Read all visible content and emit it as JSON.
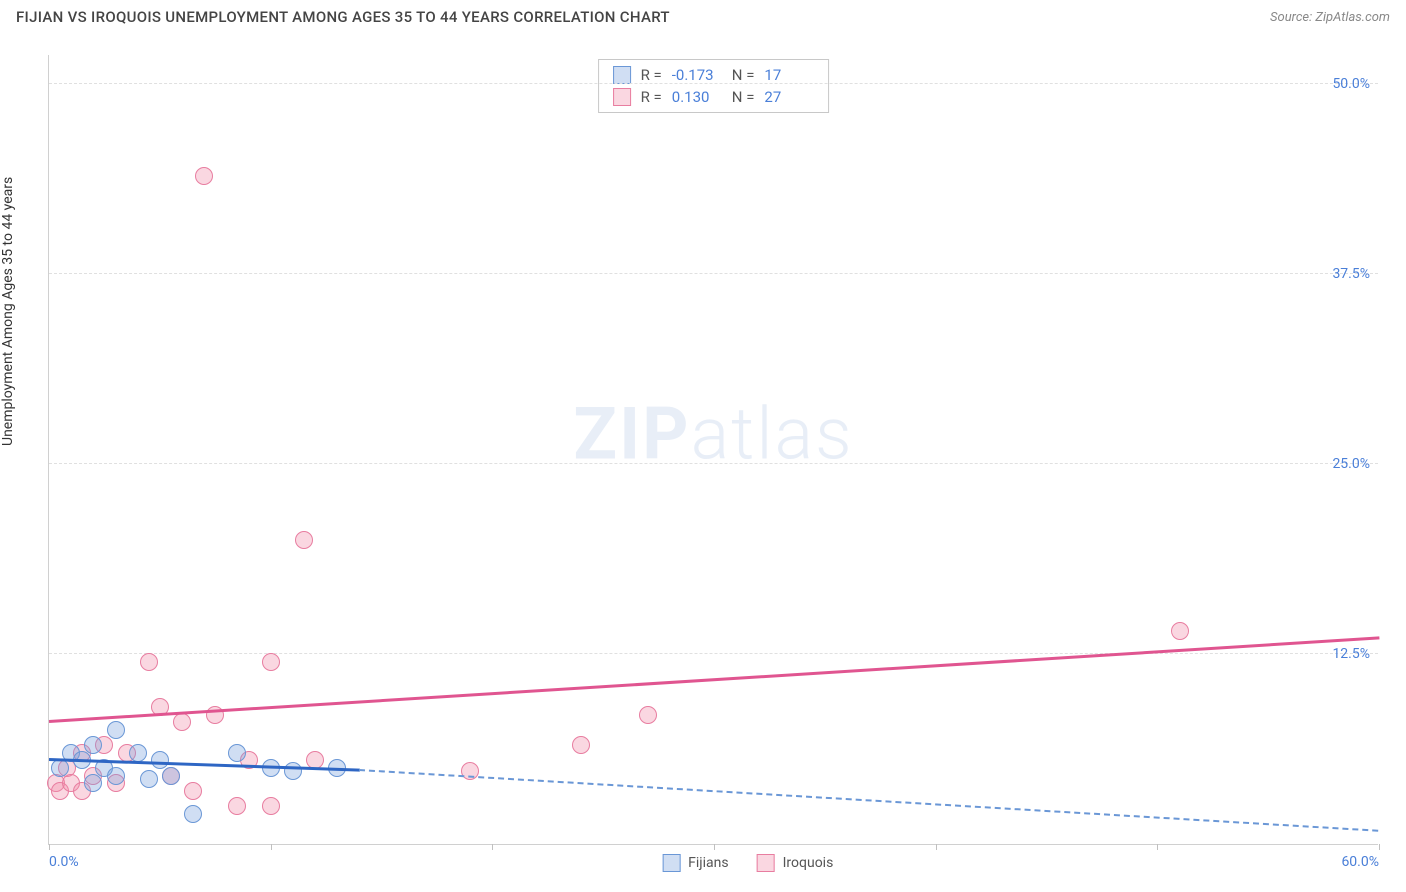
{
  "title": "FIJIAN VS IROQUOIS UNEMPLOYMENT AMONG AGES 35 TO 44 YEARS CORRELATION CHART",
  "source": "Source: ZipAtlas.com",
  "y_axis_label": "Unemployment Among Ages 35 to 44 years",
  "watermark_bold": "ZIP",
  "watermark_light": "atlas",
  "chart": {
    "type": "scatter",
    "background_color": "#ffffff",
    "grid_color": "#e0e0e0",
    "axis_color": "#d0d0d0",
    "tick_label_color": "#4a7fd8",
    "xlim": [
      0,
      60
    ],
    "ylim": [
      0,
      52
    ],
    "x_ticks": [
      0,
      10,
      20,
      30,
      40,
      50,
      60
    ],
    "x_tick_labels": {
      "0": "0.0%",
      "60": "60.0%"
    },
    "y_gridlines": [
      12.5,
      25.0,
      37.5,
      50.0
    ],
    "y_tick_labels": [
      "12.5%",
      "25.0%",
      "37.5%",
      "50.0%"
    ],
    "series": [
      {
        "name": "Fijians",
        "color_fill": "rgba(120,160,220,0.35)",
        "color_stroke": "#6a97d6",
        "marker_radius": 9,
        "R": "-0.173",
        "N": "17",
        "trend": {
          "x1": 0,
          "y1": 5.5,
          "x2": 14,
          "y2": 4.8,
          "color": "#2e66c4",
          "width": 2.5
        },
        "trend_ext": {
          "x1": 14,
          "y1": 4.8,
          "x2": 60,
          "y2": 0.8,
          "color": "#6a97d6",
          "dash": true
        },
        "points": [
          {
            "x": 0.5,
            "y": 5.0
          },
          {
            "x": 1.0,
            "y": 6.0
          },
          {
            "x": 1.5,
            "y": 5.5
          },
          {
            "x": 2.0,
            "y": 6.5
          },
          {
            "x": 2.0,
            "y": 4.0
          },
          {
            "x": 2.5,
            "y": 5.0
          },
          {
            "x": 3.0,
            "y": 7.5
          },
          {
            "x": 3.0,
            "y": 4.5
          },
          {
            "x": 4.0,
            "y": 6.0
          },
          {
            "x": 4.5,
            "y": 4.3
          },
          {
            "x": 5.0,
            "y": 5.5
          },
          {
            "x": 5.5,
            "y": 4.5
          },
          {
            "x": 6.5,
            "y": 2.0
          },
          {
            "x": 8.5,
            "y": 6.0
          },
          {
            "x": 10.0,
            "y": 5.0
          },
          {
            "x": 11.0,
            "y": 4.8
          },
          {
            "x": 13.0,
            "y": 5.0
          }
        ]
      },
      {
        "name": "Iroquois",
        "color_fill": "rgba(240,140,170,0.35)",
        "color_stroke": "#e87da0",
        "marker_radius": 9,
        "R": "0.130",
        "N": "27",
        "trend": {
          "x1": 0,
          "y1": 8.0,
          "x2": 60,
          "y2": 13.5,
          "color": "#e05590",
          "width": 2.5
        },
        "points": [
          {
            "x": 0.3,
            "y": 4.0
          },
          {
            "x": 0.5,
            "y": 3.5
          },
          {
            "x": 0.8,
            "y": 5.0
          },
          {
            "x": 1.0,
            "y": 4.0
          },
          {
            "x": 1.5,
            "y": 6.0
          },
          {
            "x": 1.5,
            "y": 3.5
          },
          {
            "x": 2.0,
            "y": 4.5
          },
          {
            "x": 2.5,
            "y": 6.5
          },
          {
            "x": 3.0,
            "y": 4.0
          },
          {
            "x": 3.5,
            "y": 6.0
          },
          {
            "x": 4.5,
            "y": 12.0
          },
          {
            "x": 5.0,
            "y": 9.0
          },
          {
            "x": 5.5,
            "y": 4.5
          },
          {
            "x": 6.0,
            "y": 8.0
          },
          {
            "x": 6.5,
            "y": 3.5
          },
          {
            "x": 7.0,
            "y": 44.0
          },
          {
            "x": 7.5,
            "y": 8.5
          },
          {
            "x": 8.5,
            "y": 2.5
          },
          {
            "x": 9.0,
            "y": 5.5
          },
          {
            "x": 10.0,
            "y": 12.0
          },
          {
            "x": 10.0,
            "y": 2.5
          },
          {
            "x": 11.5,
            "y": 20.0
          },
          {
            "x": 12.0,
            "y": 5.5
          },
          {
            "x": 19.0,
            "y": 4.8
          },
          {
            "x": 24.0,
            "y": 6.5
          },
          {
            "x": 27.0,
            "y": 8.5
          },
          {
            "x": 51.0,
            "y": 14.0
          }
        ]
      }
    ]
  },
  "legend_labels": [
    "Fijians",
    "Iroquois"
  ],
  "stats_label_R": "R =",
  "stats_label_N": "N ="
}
